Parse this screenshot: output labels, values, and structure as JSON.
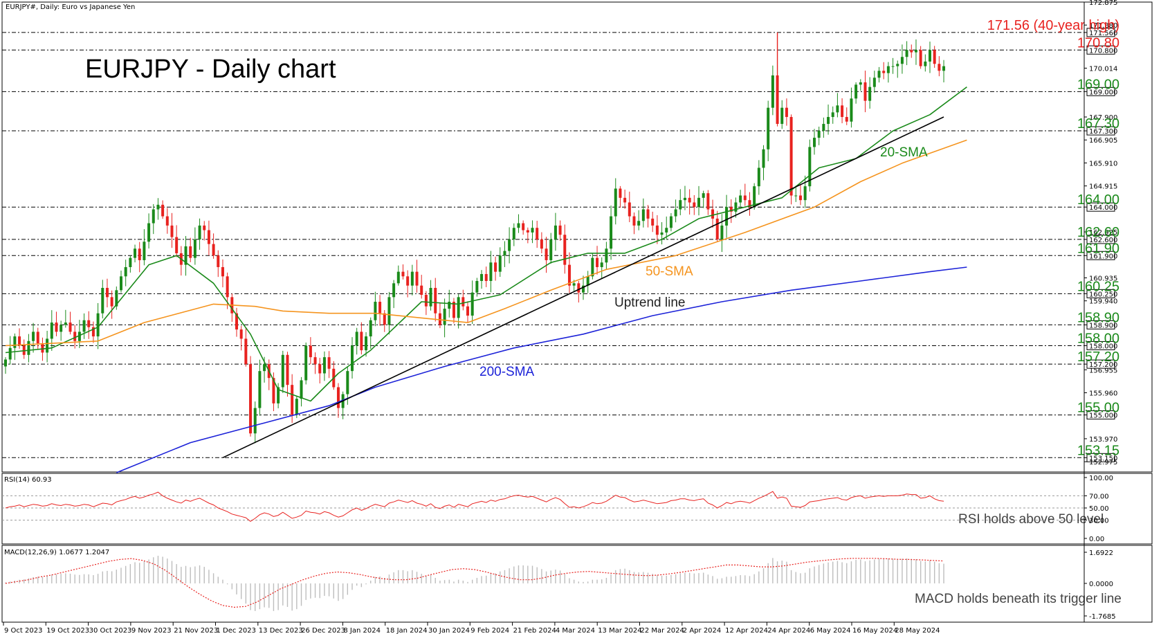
{
  "header": {
    "symbol_line": "EURJPY#, Daily:  Euro vs Japanese Yen",
    "chart_title": "EURJPY - Daily chart"
  },
  "colors": {
    "sma20": "#1a8a1a",
    "sma50": "#f5941e",
    "sma200": "#1c22d8",
    "uptrend": "#000000",
    "bull": "#1a8a1a",
    "bear": "#e8221f",
    "rsi": "#e8221f",
    "macd_hist": "#bdbdbd",
    "macd_signal": "#e8221f",
    "level_green": "#1b8a1b",
    "level_red": "#e8221f"
  },
  "annotations": {
    "sma20": "20-SMA",
    "sma50": "50-SMA",
    "sma200": "200-SMA",
    "uptrend": "Uptrend line"
  },
  "rsi_panel": {
    "header": "RSI(14) 60.93",
    "note": "RSI holds above 50 level",
    "ticks": [
      "100.00",
      "70.00",
      "50.00",
      "30.00",
      "0.00"
    ]
  },
  "macd_panel": {
    "header": "MACD(12,26,9) 1.0677 1.2047",
    "note": "MACD holds beneath its trigger line",
    "ticks": [
      "1.6922",
      "0.0000",
      "-1.7685"
    ]
  },
  "chart_data": [
    {
      "type": "candlestick",
      "ylim": [
        152.5,
        172.875
      ],
      "price_axis_ticks": [
        "172.875",
        "171.880",
        "171.560",
        "170.800",
        "170.014",
        "169.000",
        "167.900",
        "167.300",
        "166.905",
        "165.910",
        "164.915",
        "164.000",
        "162.925",
        "162.600",
        "161.900",
        "160.935",
        "160.250",
        "159.940",
        "158.900",
        "158.000",
        "157.200",
        "156.955",
        "155.960",
        "155.000",
        "153.970",
        "153.150",
        "152.975"
      ],
      "date_labels": [
        "9 Oct 2023",
        "19 Oct 2023",
        "30 Oct 2023",
        "9 Nov 2023",
        "21 Nov 2023",
        "1 Dec 2023",
        "13 Dec 2023",
        "26 Dec 2023",
        "8 Jan 2024",
        "18 Jan 2024",
        "30 Jan 2024",
        "9 Feb 2024",
        "21 Feb 2024",
        "4 Mar 2024",
        "13 Mar 2024",
        "22 Mar 2024",
        "2 Apr 2024",
        "12 Apr 2024",
        "24 Apr 2024",
        "6 May 2024",
        "16 May 2024",
        "28 May 2024"
      ],
      "levels": [
        {
          "value": 171.56,
          "label": "171.56 (40-year high)",
          "color": "red"
        },
        {
          "value": 170.8,
          "label": "170.80",
          "color": "red"
        },
        {
          "value": 169.0,
          "label": "169.00",
          "color": "green"
        },
        {
          "value": 167.3,
          "label": "167.30",
          "color": "green"
        },
        {
          "value": 164.0,
          "label": "164.00",
          "color": "green"
        },
        {
          "value": 162.6,
          "label": "162.60",
          "color": "green"
        },
        {
          "value": 161.9,
          "label": "161.90",
          "color": "green"
        },
        {
          "value": 160.25,
          "label": "160.25",
          "color": "green"
        },
        {
          "value": 158.9,
          "label": "158.90",
          "color": "green"
        },
        {
          "value": 158.0,
          "label": "158.00",
          "color": "green"
        },
        {
          "value": 157.2,
          "label": "157.20",
          "color": "green"
        },
        {
          "value": 155.0,
          "label": "155.00",
          "color": "green"
        },
        {
          "value": 153.15,
          "label": "153.15",
          "color": "green"
        }
      ],
      "closes": [
        157.4,
        157.9,
        158.4,
        158.0,
        157.6,
        158.2,
        158.6,
        158.1,
        157.7,
        158.3,
        159.0,
        158.6,
        158.9,
        159.0,
        158.6,
        158.2,
        158.6,
        159.1,
        158.8,
        158.4,
        159.4,
        160.5,
        160.1,
        159.7,
        160.4,
        161.0,
        161.4,
        161.8,
        162.2,
        161.7,
        162.5,
        163.3,
        163.9,
        164.1,
        163.6,
        163.2,
        162.7,
        162.0,
        161.5,
        162.3,
        161.8,
        162.6,
        163.2,
        163.0,
        162.4,
        161.9,
        161.4,
        161.0,
        160.1,
        159.4,
        158.7,
        158.3,
        157.2,
        154.2,
        155.3,
        156.9,
        157.2,
        156.6,
        155.5,
        156.2,
        157.6,
        156.3,
        155.0,
        155.7,
        156.5,
        158.0,
        157.5,
        157.2,
        156.8,
        157.5,
        157.0,
        156.2,
        155.3,
        155.9,
        156.9,
        158.0,
        158.6,
        157.8,
        158.4,
        159.1,
        159.9,
        159.4,
        158.9,
        160.1,
        160.7,
        161.2,
        161.0,
        160.6,
        161.2,
        160.6,
        160.2,
        159.7,
        160.5,
        159.4,
        158.9,
        159.6,
        159.9,
        159.2,
        160.1,
        159.7,
        159.3,
        160.3,
        160.8,
        161.1,
        160.8,
        161.6,
        161.2,
        161.9,
        162.1,
        162.6,
        163.1,
        163.3,
        163.0,
        162.9,
        163.1,
        162.6,
        162.2,
        161.7,
        162.6,
        163.2,
        162.8,
        161.5,
        160.6,
        160.7,
        160.3,
        160.6,
        161.0,
        161.8,
        161.4,
        161.6,
        162.2,
        163.6,
        164.8,
        164.4,
        164.2,
        163.6,
        163.2,
        163.4,
        163.9,
        163.5,
        163.2,
        162.8,
        162.9,
        163.1,
        163.6,
        163.9,
        164.3,
        164.4,
        164.2,
        164.0,
        164.4,
        164.6,
        163.9,
        163.5,
        162.6,
        163.2,
        164.0,
        163.8,
        164.2,
        164.5,
        164.3,
        164.0,
        164.9,
        165.7,
        166.5,
        168.3,
        169.7,
        167.6,
        168.3,
        167.9,
        164.5,
        164.5,
        164.3,
        164.9,
        166.6,
        167.0,
        167.3,
        167.6,
        167.9,
        168.1,
        168.4,
        167.9,
        167.7,
        168.7,
        169.3,
        169.4,
        168.6,
        169.2,
        169.6,
        169.9,
        169.8,
        170.1,
        170.1,
        170.2,
        170.5,
        170.8,
        170.7,
        170.8,
        170.1,
        170.3,
        170.8,
        170.2,
        169.9,
        170.1
      ],
      "series": [
        {
          "name": "20-SMA",
          "points": [
            [
              0,
              157.7
            ],
            [
              10,
              157.9
            ],
            [
              20,
              158.8
            ],
            [
              31,
              161.5
            ],
            [
              37,
              161.9
            ],
            [
              45,
              160.7
            ],
            [
              53,
              158.5
            ],
            [
              59,
              156.1
            ],
            [
              66,
              155.6
            ],
            [
              72,
              156.8
            ],
            [
              79,
              157.8
            ],
            [
              90,
              159.9
            ],
            [
              98,
              159.8
            ],
            [
              107,
              160.2
            ],
            [
              118,
              161.6
            ],
            [
              126,
              162.0
            ],
            [
              134,
              162.0
            ],
            [
              142,
              162.6
            ],
            [
              150,
              163.5
            ],
            [
              160,
              164.0
            ],
            [
              168,
              164.4
            ],
            [
              176,
              165.7
            ],
            [
              184,
              166.1
            ],
            [
              192,
              167.3
            ],
            [
              200,
              168.0
            ],
            [
              208,
              169.2
            ]
          ]
        },
        {
          "name": "50-SMA",
          "points": [
            [
              0,
              158.0
            ],
            [
              20,
              158.2
            ],
            [
              30,
              159.0
            ],
            [
              45,
              159.8
            ],
            [
              54,
              159.7
            ],
            [
              60,
              159.5
            ],
            [
              70,
              159.4
            ],
            [
              80,
              159.4
            ],
            [
              90,
              159.2
            ],
            [
              100,
              159.0
            ],
            [
              108,
              159.6
            ],
            [
              118,
              160.4
            ],
            [
              130,
              161.3
            ],
            [
              145,
              161.9
            ],
            [
              160,
              162.9
            ],
            [
              175,
              164.0
            ],
            [
              185,
              165.1
            ],
            [
              194,
              165.9
            ],
            [
              208,
              166.9
            ]
          ]
        },
        {
          "name": "200-SMA",
          "points": [
            [
              24,
              152.5
            ],
            [
              40,
              153.8
            ],
            [
              55,
              154.6
            ],
            [
              70,
              155.4
            ],
            [
              80,
              156.2
            ],
            [
              95,
              157.1
            ],
            [
              110,
              157.9
            ],
            [
              125,
              158.5
            ],
            [
              140,
              159.3
            ],
            [
              155,
              159.9
            ],
            [
              170,
              160.4
            ],
            [
              185,
              160.8
            ],
            [
              200,
              161.2
            ],
            [
              208,
              161.4
            ]
          ]
        },
        {
          "name": "Uptrend line",
          "points": [
            [
              47,
              153.15
            ],
            [
              203,
              167.9
            ]
          ]
        }
      ]
    },
    {
      "type": "line",
      "title": "RSI(14) 60.93",
      "ylim": [
        0,
        100
      ],
      "values": [
        50,
        52,
        53,
        55,
        52,
        54,
        56,
        55,
        53,
        54,
        57,
        55,
        54,
        56,
        55,
        53,
        54,
        56,
        55,
        52,
        55,
        58,
        57,
        55,
        60,
        62,
        64,
        67,
        69,
        66,
        68,
        71,
        73,
        76,
        70,
        66,
        63,
        60,
        58,
        63,
        61,
        64,
        66,
        62,
        58,
        55,
        50,
        47,
        44,
        40,
        38,
        36,
        34,
        28,
        33,
        39,
        42,
        40,
        36,
        38,
        43,
        38,
        33,
        35,
        38,
        45,
        43,
        42,
        40,
        44,
        42,
        38,
        35,
        37,
        42,
        47,
        50,
        46,
        49,
        53,
        56,
        54,
        52,
        58,
        60,
        63,
        61,
        59,
        62,
        58,
        56,
        53,
        57,
        51,
        49,
        53,
        55,
        51,
        56,
        54,
        52,
        57,
        59,
        61,
        59,
        63,
        61,
        64,
        65,
        68,
        70,
        71,
        69,
        68,
        69,
        66,
        63,
        60,
        64,
        67,
        64,
        57,
        51,
        52,
        50,
        52,
        55,
        59,
        57,
        58,
        61,
        66,
        71,
        68,
        67,
        63,
        60,
        61,
        63,
        61,
        59,
        57,
        58,
        59,
        62,
        63,
        65,
        65,
        63,
        62,
        64,
        65,
        58,
        55,
        50,
        54,
        59,
        57,
        60,
        61,
        60,
        58,
        62,
        66,
        69,
        73,
        77,
        66,
        68,
        66,
        53,
        52,
        51,
        54,
        60,
        61,
        62,
        64,
        65,
        66,
        67,
        64,
        63,
        67,
        69,
        70,
        66,
        68,
        69,
        70,
        69,
        70,
        70,
        70,
        71,
        73,
        72,
        72,
        66,
        67,
        70,
        65,
        62,
        61
      ]
    },
    {
      "type": "bar",
      "title": "MACD(12,26,9) 1.0677 1.2047",
      "ylim": [
        -1.7685,
        1.6922
      ],
      "histogram": [
        0.05,
        0.1,
        0.15,
        0.2,
        0.22,
        0.28,
        0.34,
        0.36,
        0.35,
        0.4,
        0.48,
        0.5,
        0.52,
        0.55,
        0.53,
        0.48,
        0.46,
        0.5,
        0.49,
        0.45,
        0.52,
        0.65,
        0.68,
        0.66,
        0.75,
        0.85,
        0.95,
        1.05,
        1.15,
        1.12,
        1.2,
        1.3,
        1.42,
        1.5,
        1.45,
        1.35,
        1.22,
        1.05,
        0.9,
        0.95,
        0.88,
        0.92,
        0.98,
        0.9,
        0.74,
        0.55,
        0.36,
        0.2,
        -0.05,
        -0.32,
        -0.6,
        -0.85,
        -1.1,
        -1.45,
        -1.5,
        -1.4,
        -1.3,
        -1.33,
        -1.5,
        -1.45,
        -1.2,
        -1.28,
        -1.48,
        -1.4,
        -1.22,
        -0.9,
        -0.82,
        -0.78,
        -0.8,
        -0.68,
        -0.7,
        -0.82,
        -0.95,
        -0.85,
        -0.62,
        -0.35,
        -0.12,
        -0.2,
        -0.05,
        0.15,
        0.35,
        0.38,
        0.3,
        0.48,
        0.6,
        0.72,
        0.72,
        0.66,
        0.72,
        0.63,
        0.52,
        0.4,
        0.45,
        0.3,
        0.15,
        0.18,
        0.2,
        0.1,
        0.2,
        0.15,
        0.08,
        0.2,
        0.3,
        0.4,
        0.42,
        0.55,
        0.55,
        0.65,
        0.72,
        0.82,
        0.92,
        0.98,
        0.98,
        0.96,
        0.96,
        0.88,
        0.78,
        0.65,
        0.7,
        0.75,
        0.7,
        0.5,
        0.28,
        0.2,
        0.1,
        0.08,
        0.1,
        0.2,
        0.2,
        0.22,
        0.3,
        0.5,
        0.72,
        0.78,
        0.8,
        0.72,
        0.62,
        0.6,
        0.62,
        0.58,
        0.52,
        0.45,
        0.42,
        0.42,
        0.46,
        0.5,
        0.55,
        0.58,
        0.57,
        0.54,
        0.56,
        0.58,
        0.48,
        0.4,
        0.25,
        0.28,
        0.36,
        0.36,
        0.4,
        0.45,
        0.44,
        0.4,
        0.5,
        0.65,
        0.82,
        1.1,
        1.38,
        1.2,
        1.24,
        1.18,
        0.72,
        0.62,
        0.55,
        0.58,
        0.82,
        0.92,
        1.0,
        1.08,
        1.14,
        1.18,
        1.22,
        1.15,
        1.1,
        1.2,
        1.28,
        1.3,
        1.2,
        1.25,
        1.3,
        1.34,
        1.32,
        1.35,
        1.34,
        1.32,
        1.34,
        1.36,
        1.33,
        1.32,
        1.22,
        1.2,
        1.25,
        1.18,
        1.1,
        1.07
      ],
      "signal": [
        0.0,
        0.1,
        0.2,
        0.35,
        0.45,
        0.6,
        0.75,
        0.9,
        1.05,
        1.2,
        1.3,
        1.35,
        1.25,
        1.05,
        0.7,
        0.25,
        -0.2,
        -0.6,
        -0.95,
        -1.2,
        -1.3,
        -1.25,
        -1.0,
        -0.65,
        -0.3,
        -0.05,
        0.2,
        0.4,
        0.55,
        0.62,
        0.58,
        0.48,
        0.35,
        0.25,
        0.2,
        0.2,
        0.28,
        0.45,
        0.6,
        0.75,
        0.8,
        0.75,
        0.62,
        0.45,
        0.3,
        0.2,
        0.2,
        0.3,
        0.45,
        0.55,
        0.62,
        0.65,
        0.6,
        0.55,
        0.5,
        0.45,
        0.42,
        0.45,
        0.52,
        0.6,
        0.7,
        0.8,
        0.9,
        1.0,
        1.0,
        0.95,
        0.9,
        0.9,
        0.95,
        1.05,
        1.15,
        1.22,
        1.28,
        1.33,
        1.36,
        1.36,
        1.36,
        1.34,
        1.31,
        1.3,
        1.28,
        1.25,
        1.22
      ]
    }
  ]
}
